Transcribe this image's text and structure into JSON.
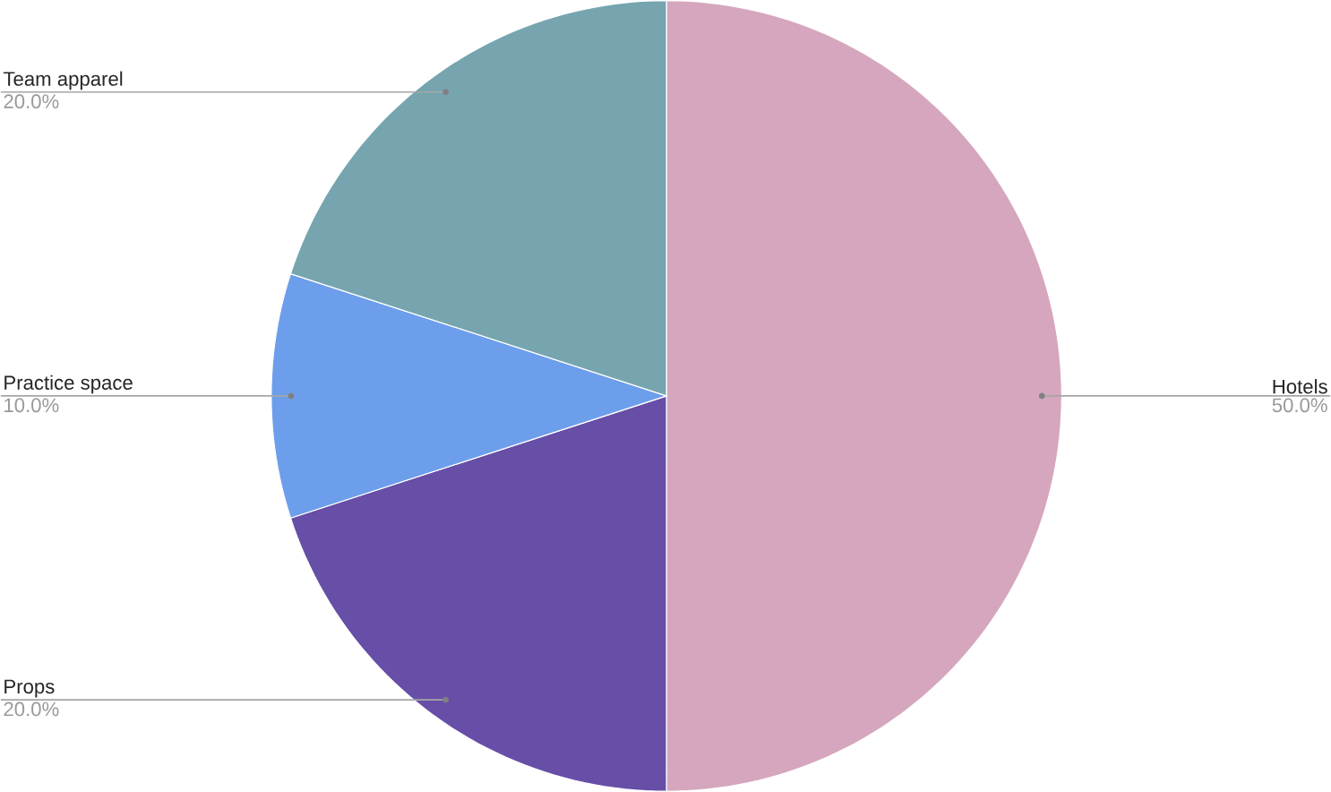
{
  "chart_data": {
    "type": "pie",
    "categories": [
      "Hotels",
      "Props",
      "Practice space",
      "Team apparel"
    ],
    "values": [
      50,
      20,
      10,
      20
    ],
    "value_labels": [
      "50.0%",
      "20.0%",
      "10.0%",
      "20.0%"
    ],
    "colors": [
      "#d5a6bd",
      "#674ea7",
      "#6d9eeb",
      "#76a5af"
    ]
  }
}
